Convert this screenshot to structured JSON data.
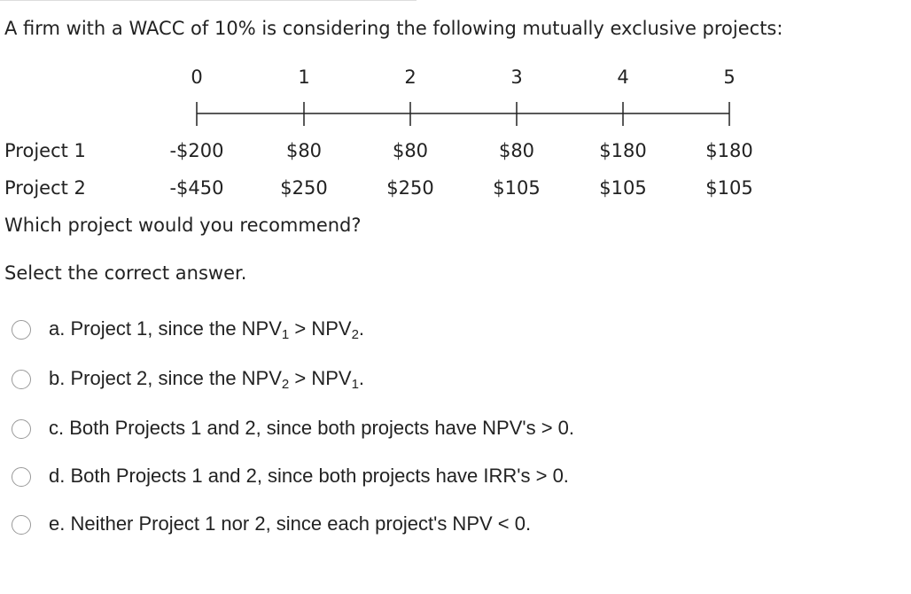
{
  "question": "A firm with a WACC of 10% is considering the following mutually exclusive projects:",
  "periods": [
    "0",
    "1",
    "2",
    "3",
    "4",
    "5"
  ],
  "projects": [
    {
      "name": "Project 1",
      "cash_flows": [
        "-$200",
        "$80",
        "$80",
        "$80",
        "$180",
        "$180"
      ]
    },
    {
      "name": "Project 2",
      "cash_flows": [
        "-$450",
        "$250",
        "$250",
        "$105",
        "$105",
        "$105"
      ]
    }
  ],
  "prompt": "Which project would you recommend?",
  "instruction": "Select the correct answer.",
  "options": [
    {
      "segments": [
        "a. Project 1, since the NPV",
        "1",
        " > NPV",
        "2",
        "."
      ]
    },
    {
      "segments": [
        "b. Project 2, since the NPV",
        "2",
        " > NPV",
        "1",
        "."
      ]
    },
    {
      "segments": [
        "c. Both Projects 1 and 2, since both projects have NPV's > 0."
      ]
    },
    {
      "segments": [
        "d. Both Projects 1 and 2, since both projects have IRR's > 0."
      ]
    },
    {
      "segments": [
        "e. Neither Project 1 nor 2, since each project's NPV < 0."
      ]
    }
  ]
}
